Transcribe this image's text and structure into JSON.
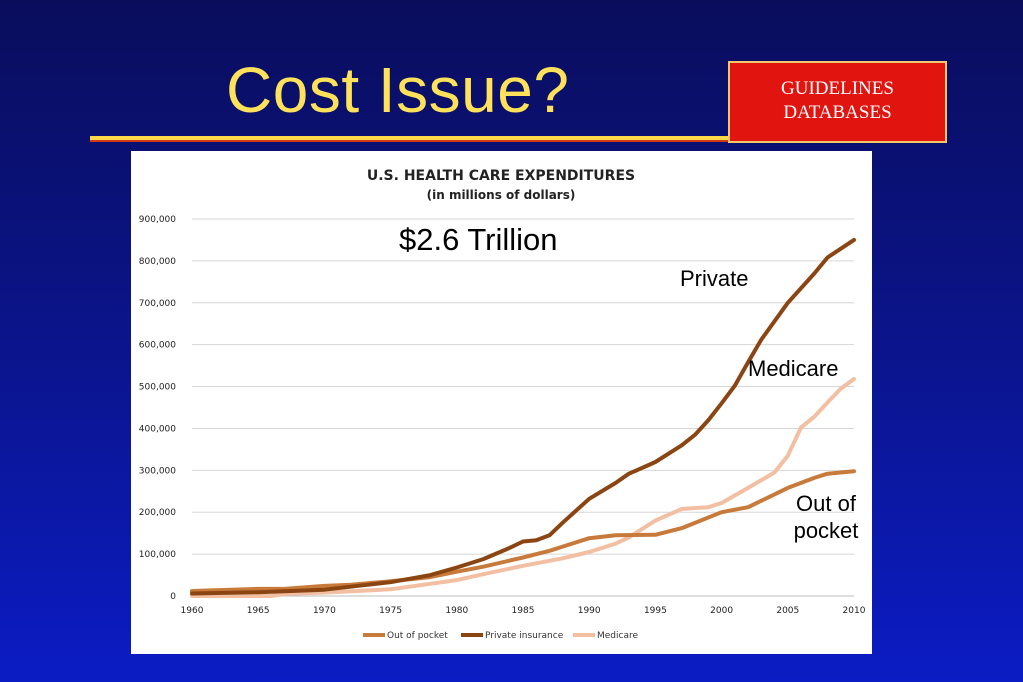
{
  "slide": {
    "title": "Cost Issue?",
    "tag": {
      "line1": "GUIDELINES",
      "line2": "DATABASES"
    },
    "colors": {
      "background": "#0b1590",
      "title": "#ffe25a",
      "tag_bg": "#e2140f"
    }
  },
  "annotations": {
    "total": "$2.6 Trillion",
    "private": "Private",
    "medicare": "Medicare",
    "oop_line1": "Out of",
    "oop_line2": "pocket"
  },
  "chart_data": {
    "type": "line",
    "title": "U.S. HEALTH CARE EXPENDITURES",
    "subtitle": "(in millions of dollars)",
    "xlim": [
      1960,
      2010
    ],
    "ylim": [
      0,
      900000
    ],
    "x_ticks": [
      1960,
      1965,
      1970,
      1975,
      1980,
      1985,
      1990,
      1995,
      2000,
      2005,
      2010
    ],
    "y_ticks": [
      "0",
      "100,000",
      "200,000",
      "300,000",
      "400,000",
      "500,000",
      "600,000",
      "700,000",
      "800,000",
      "900,000"
    ],
    "grid": true,
    "legend_position": "bottom",
    "series": [
      {
        "name": "Out of pocket",
        "color": "#c87a3a",
        "points": [
          [
            1960,
            12000
          ],
          [
            1965,
            17000
          ],
          [
            1967,
            17000
          ],
          [
            1970,
            24000
          ],
          [
            1972,
            27000
          ],
          [
            1975,
            35000
          ],
          [
            1978,
            45000
          ],
          [
            1980,
            58000
          ],
          [
            1982,
            70000
          ],
          [
            1985,
            92000
          ],
          [
            1987,
            108000
          ],
          [
            1988,
            118000
          ],
          [
            1990,
            138000
          ],
          [
            1992,
            145000
          ],
          [
            1995,
            146000
          ],
          [
            1997,
            162000
          ],
          [
            2000,
            200000
          ],
          [
            2002,
            212000
          ],
          [
            2005,
            258000
          ],
          [
            2007,
            282000
          ],
          [
            2008,
            292000
          ],
          [
            2010,
            298000
          ]
        ]
      },
      {
        "name": "Private insurance",
        "color": "#8b4513",
        "points": [
          [
            1960,
            6000
          ],
          [
            1965,
            9000
          ],
          [
            1970,
            15000
          ],
          [
            1975,
            33000
          ],
          [
            1978,
            50000
          ],
          [
            1980,
            68000
          ],
          [
            1982,
            88000
          ],
          [
            1984,
            115000
          ],
          [
            1985,
            130000
          ],
          [
            1986,
            133000
          ],
          [
            1987,
            145000
          ],
          [
            1988,
            175000
          ],
          [
            1990,
            232000
          ],
          [
            1992,
            270000
          ],
          [
            1993,
            292000
          ],
          [
            1995,
            320000
          ],
          [
            1997,
            360000
          ],
          [
            1998,
            385000
          ],
          [
            1999,
            420000
          ],
          [
            2000,
            460000
          ],
          [
            2001,
            502000
          ],
          [
            2002,
            558000
          ],
          [
            2003,
            612000
          ],
          [
            2005,
            700000
          ],
          [
            2007,
            770000
          ],
          [
            2008,
            808000
          ],
          [
            2010,
            850000
          ]
        ]
      },
      {
        "name": "Medicare",
        "color": "#f2bfa2",
        "points": [
          [
            1960,
            0
          ],
          [
            1966,
            0
          ],
          [
            1967,
            5000
          ],
          [
            1970,
            8000
          ],
          [
            1975,
            16000
          ],
          [
            1980,
            38000
          ],
          [
            1982,
            52000
          ],
          [
            1985,
            72000
          ],
          [
            1988,
            90000
          ],
          [
            1990,
            105000
          ],
          [
            1992,
            125000
          ],
          [
            1993,
            140000
          ],
          [
            1995,
            180000
          ],
          [
            1997,
            208000
          ],
          [
            1999,
            212000
          ],
          [
            2000,
            222000
          ],
          [
            2002,
            258000
          ],
          [
            2004,
            295000
          ],
          [
            2005,
            335000
          ],
          [
            2006,
            402000
          ],
          [
            2007,
            428000
          ],
          [
            2008,
            462000
          ],
          [
            2009,
            495000
          ],
          [
            2010,
            518000
          ]
        ]
      }
    ]
  }
}
